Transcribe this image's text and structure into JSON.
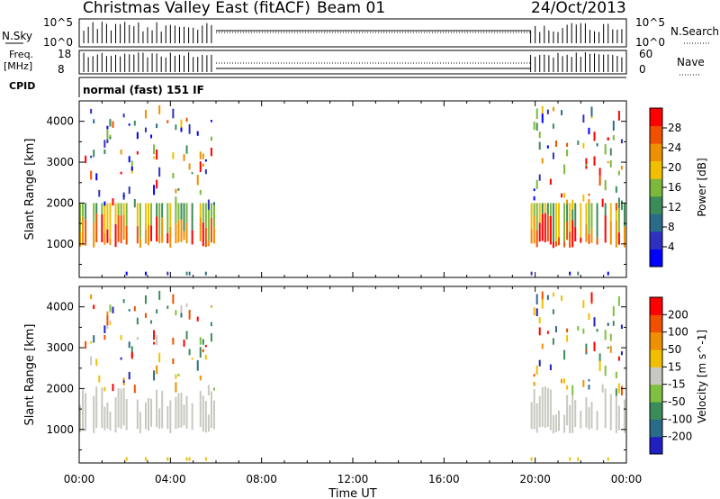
{
  "header": {
    "station": "Christmas Valley East (fitACF)",
    "beam": "Beam 01",
    "date": "24/Oct/2013"
  },
  "panels": {
    "nsky": {
      "left_label": "N.Sky",
      "right_label": "N.Search",
      "left_ticks": [
        "10^5",
        "10^0"
      ],
      "right_ticks": [
        "10^5",
        "10^0"
      ]
    },
    "freq": {
      "left_label_1": "Freq.",
      "left_label_2": "[MHz]",
      "right_label": "Nave",
      "left_ticks": [
        "18",
        "8"
      ],
      "right_ticks": [
        "60",
        "0"
      ]
    },
    "cpid": {
      "label": "CPID",
      "text": "normal (fast) 151 IF"
    }
  },
  "power_panel": {
    "ylabel": "Slant Range [km]",
    "yticks": [
      "1000",
      "2000",
      "3000",
      "4000"
    ],
    "colorbar_label": "Power [dB]",
    "colorbar_ticks": [
      "4",
      "8",
      "12",
      "16",
      "20",
      "24",
      "28"
    ],
    "colors": [
      "#0000ff",
      "#3030c0",
      "#2a6b8a",
      "#3c8c5a",
      "#7cb83c",
      "#f0c000",
      "#f09000",
      "#f05000",
      "#ff0000"
    ]
  },
  "velocity_panel": {
    "ylabel": "Slant Range [km]",
    "yticks": [
      "1000",
      "2000",
      "3000",
      "4000"
    ],
    "colorbar_label": "Velocity [m s^-1]",
    "colorbar_ticks": [
      "200",
      "100",
      "50",
      "15",
      "-15",
      "-50",
      "-100",
      "-200"
    ],
    "colors": [
      "#2020c0",
      "#2a6b8a",
      "#3c8c5a",
      "#80c040",
      "#c8c8c0",
      "#f0c000",
      "#f09000",
      "#f05000",
      "#ff0000"
    ]
  },
  "xaxis": {
    "label": "Time UT",
    "ticks": [
      "00:00",
      "04:00",
      "08:00",
      "12:00",
      "16:00",
      "20:00",
      "00:00"
    ]
  },
  "chart_data": {
    "type": "heatmap",
    "title": "Christmas Valley East (fitACF) Beam 01 24/Oct/2013",
    "xlabel": "Time UT",
    "ylabel": "Slant Range [km]",
    "xlim": [
      0,
      24
    ],
    "ylim": [
      180,
      4500
    ],
    "data_intervals_hours": [
      [
        0,
        6
      ],
      [
        19.8,
        24
      ]
    ],
    "power_colorbar": {
      "label": "Power [dB]",
      "ticks": [
        4,
        8,
        12,
        16,
        20,
        24,
        28
      ]
    },
    "velocity_colorbar": {
      "label": "Velocity [m s^-1]",
      "ticks": [
        200,
        100,
        50,
        15,
        -15,
        -50,
        -100,
        -200
      ]
    },
    "backscatter_ranges_km": {
      "strong_band": [
        900,
        2000
      ],
      "sparse_far": [
        2000,
        4400
      ]
    }
  }
}
